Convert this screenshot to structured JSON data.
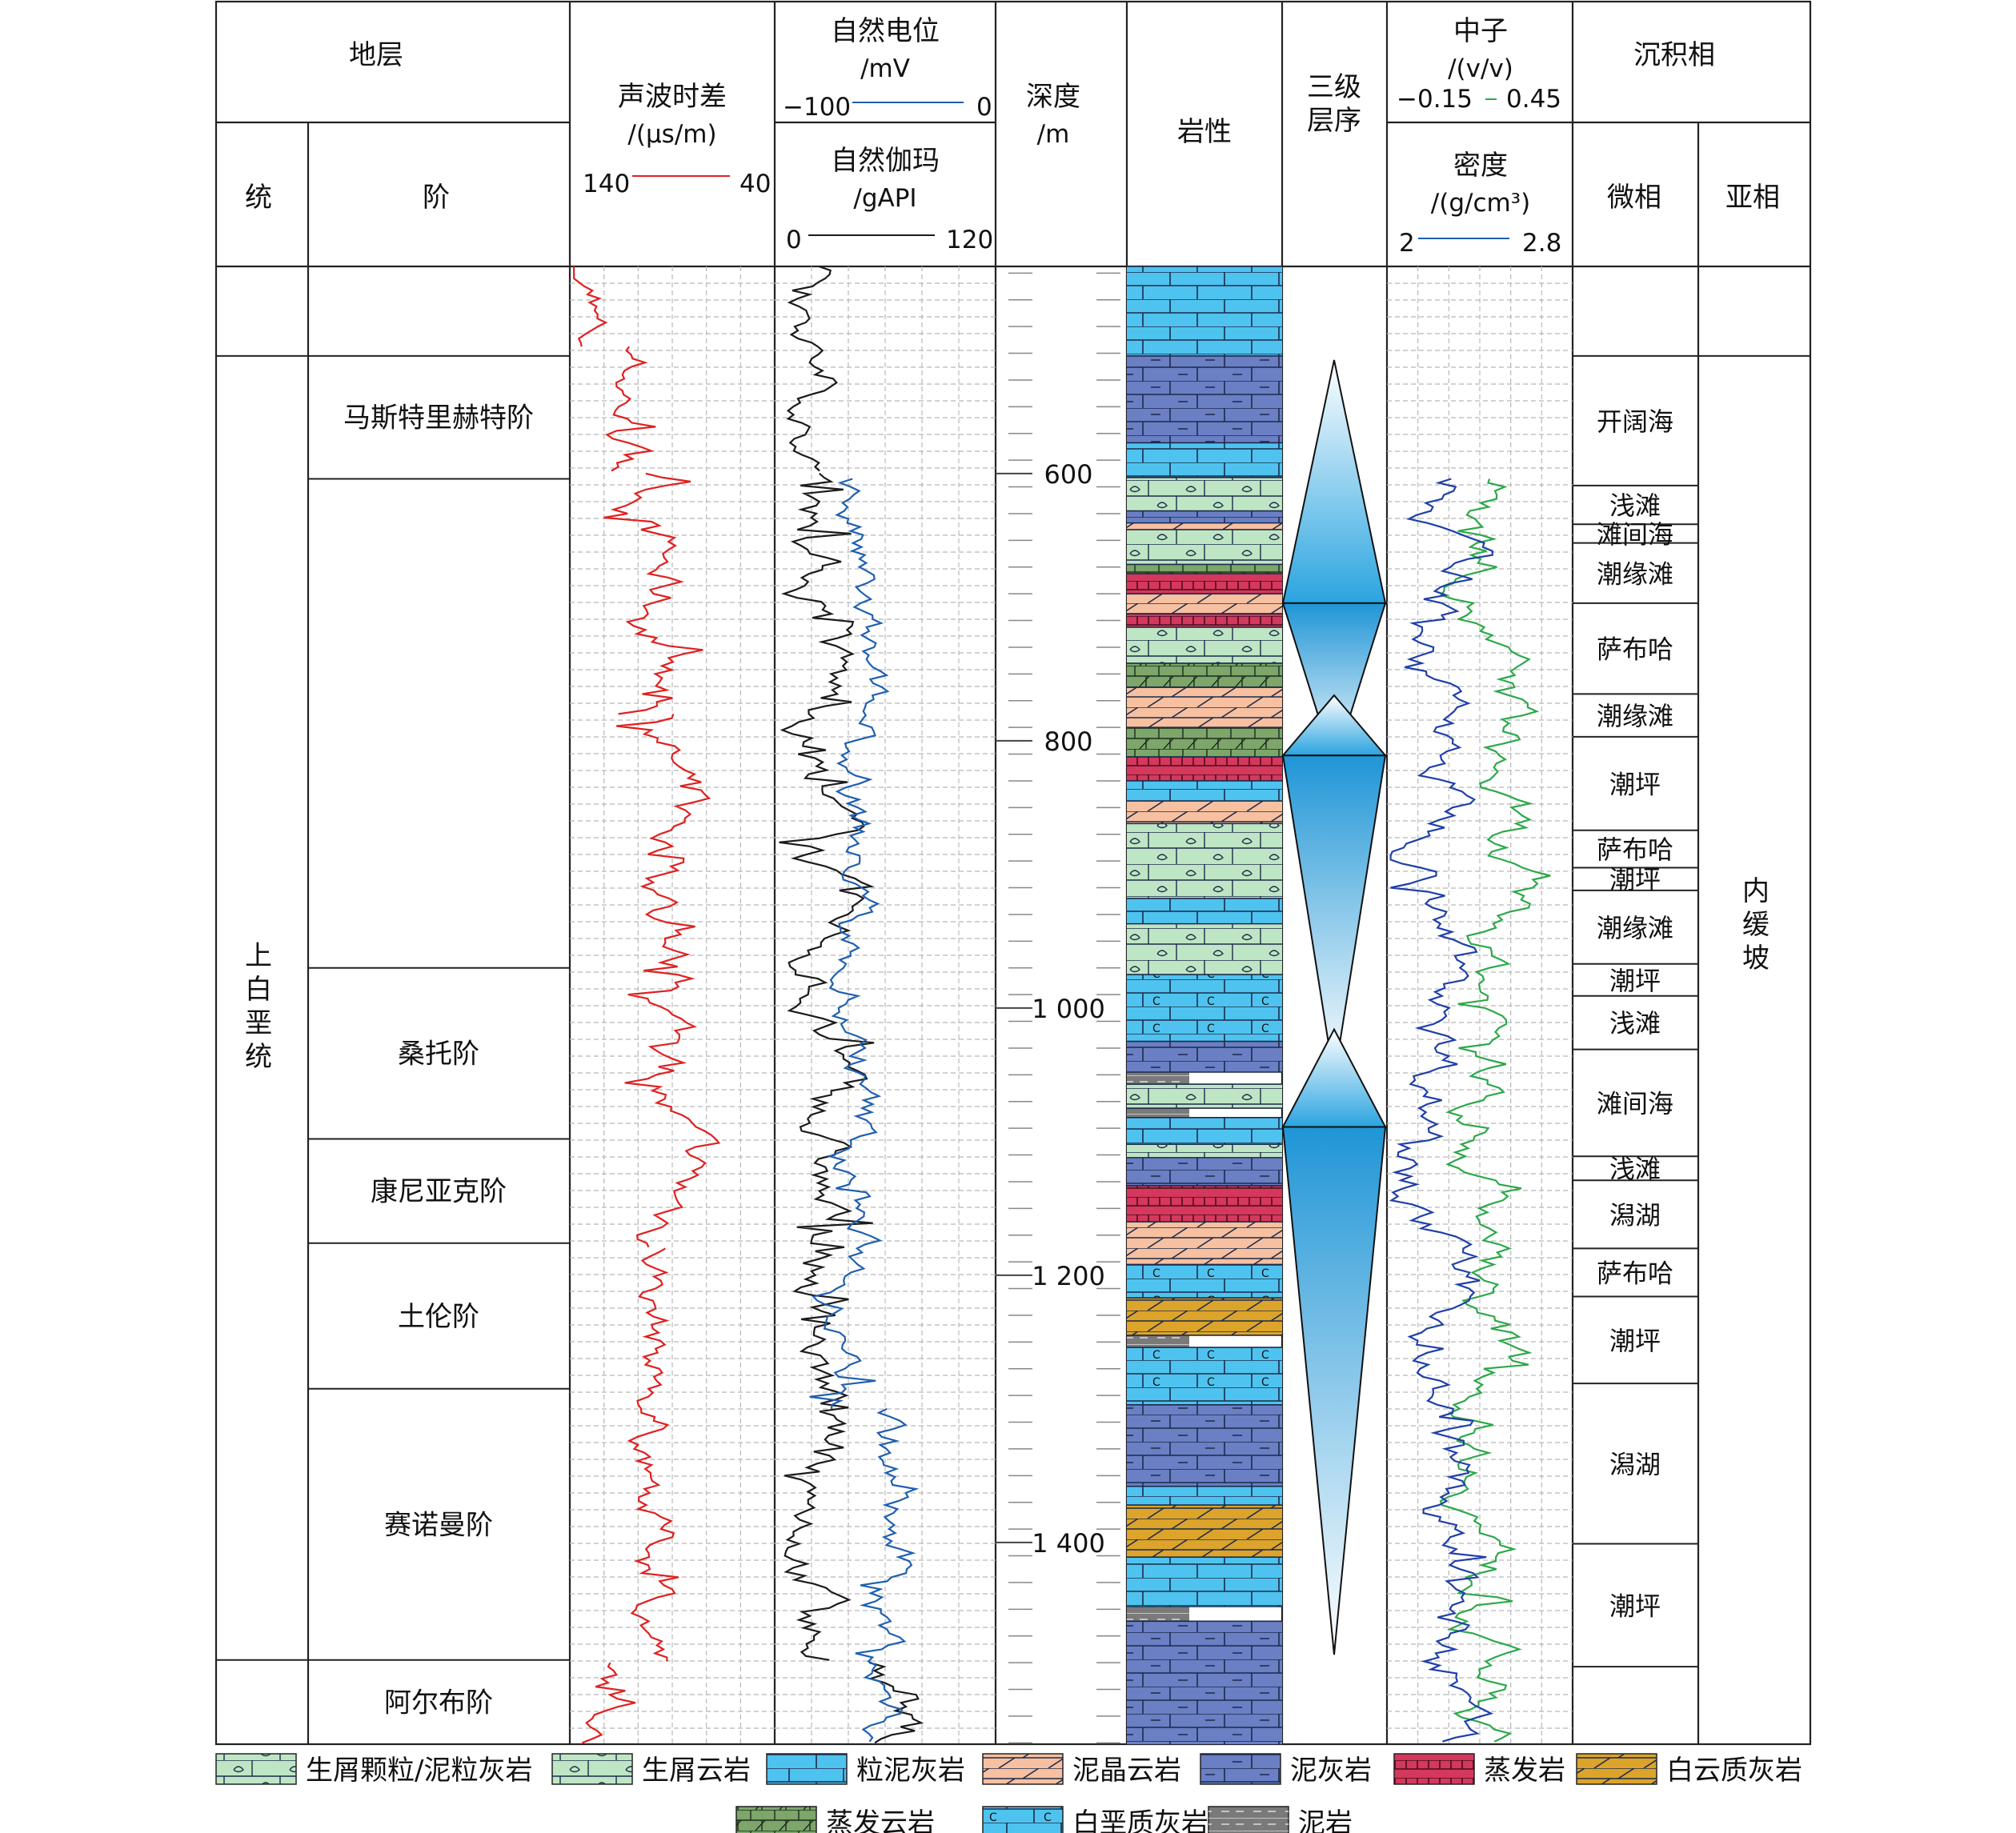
{
  "header": {
    "stratum": "地层",
    "series": "统",
    "stage": "阶",
    "sonic_title": "声波时差",
    "sonic_unit": "/(μs/m)",
    "sonic_left": "140",
    "sonic_right": "40",
    "sp_title": "自然电位",
    "sp_unit": "/mV",
    "sp_left": "−100",
    "sp_right": "0",
    "gr_title": "自然伽玛",
    "gr_unit": "/gAPI",
    "gr_left": "0",
    "gr_right": "120",
    "depth_title": "深度",
    "depth_unit": "/m",
    "lithology": "岩性",
    "sequence": "三级\n层序",
    "neutron_title": "中子",
    "neutron_unit": "/(v/v)",
    "neutron_left": "−0.15",
    "neutron_right": "0.45",
    "density_title": "密度",
    "density_unit": "/(g/cm³)",
    "density_left": "2",
    "density_right": "2.8",
    "facies": "沉积相",
    "microfacies": "微相",
    "subfacies": "亚相"
  },
  "series_name": "上白垩统",
  "stages": [
    {
      "name": "",
      "top": 445,
      "bottom": 512
    },
    {
      "name": "马斯特里赫特阶",
      "top": 512,
      "bottom": 604
    },
    {
      "name": "",
      "top": 604,
      "bottom": 970
    },
    {
      "name": "桑托阶",
      "top": 970,
      "bottom": 1098
    },
    {
      "name": "康尼亚克阶",
      "top": 1098,
      "bottom": 1176
    },
    {
      "name": "土伦阶",
      "top": 1176,
      "bottom": 1285
    },
    {
      "name": "赛诺曼阶",
      "top": 1285,
      "bottom": 1488
    },
    {
      "name": "阿尔布阶",
      "top": 1488,
      "bottom": 1551
    }
  ],
  "depth_ticks": [
    "600",
    "800",
    "1 000",
    "1 200",
    "1 400"
  ],
  "depth_tick_values": [
    600,
    800,
    1000,
    1200,
    1400
  ],
  "depth_range": [
    445,
    1551
  ],
  "lithology_layers": [
    {
      "top": 445,
      "bottom": 512,
      "rock": "粒泥灰岩"
    },
    {
      "top": 512,
      "bottom": 577,
      "rock": "泥灰岩"
    },
    {
      "top": 577,
      "bottom": 603,
      "rock": "粒泥灰岩"
    },
    {
      "top": 603,
      "bottom": 628,
      "rock": "生屑颗粒/泥粒灰岩"
    },
    {
      "top": 628,
      "bottom": 637,
      "rock": "泥灰岩"
    },
    {
      "top": 637,
      "bottom": 642,
      "rock": "泥晶云岩"
    },
    {
      "top": 642,
      "bottom": 668,
      "rock": "生屑颗粒/泥粒灰岩"
    },
    {
      "top": 668,
      "bottom": 675,
      "rock": "蒸发云岩"
    },
    {
      "top": 675,
      "bottom": 690,
      "rock": "蒸发岩"
    },
    {
      "top": 690,
      "bottom": 705,
      "rock": "泥晶云岩"
    },
    {
      "top": 705,
      "bottom": 715,
      "rock": "蒸发岩"
    },
    {
      "top": 715,
      "bottom": 742,
      "rock": "生屑云岩"
    },
    {
      "top": 742,
      "bottom": 760,
      "rock": "蒸发云岩"
    },
    {
      "top": 760,
      "bottom": 790,
      "rock": "泥晶云岩"
    },
    {
      "top": 790,
      "bottom": 812,
      "rock": "蒸发云岩"
    },
    {
      "top": 812,
      "bottom": 830,
      "rock": "蒸发岩"
    },
    {
      "top": 830,
      "bottom": 845,
      "rock": "粒泥灰岩"
    },
    {
      "top": 845,
      "bottom": 862,
      "rock": "泥晶云岩"
    },
    {
      "top": 862,
      "bottom": 918,
      "rock": "生屑云岩"
    },
    {
      "top": 918,
      "bottom": 937,
      "rock": "粒泥灰岩"
    },
    {
      "top": 937,
      "bottom": 975,
      "rock": "生屑颗粒/泥粒灰岩"
    },
    {
      "top": 975,
      "bottom": 1025,
      "rock": "白垩质灰岩"
    },
    {
      "top": 1025,
      "bottom": 1048,
      "rock": "泥灰岩"
    },
    {
      "top": 1048,
      "bottom": 1057,
      "rock": "泥岩"
    },
    {
      "top": 1057,
      "bottom": 1075,
      "rock": "生屑颗粒/泥粒灰岩"
    },
    {
      "top": 1075,
      "bottom": 1082,
      "rock": "泥岩"
    },
    {
      "top": 1082,
      "bottom": 1102,
      "rock": "粒泥灰岩"
    },
    {
      "top": 1102,
      "bottom": 1112,
      "rock": "生屑云岩"
    },
    {
      "top": 1112,
      "bottom": 1133,
      "rock": "泥灰岩"
    },
    {
      "top": 1133,
      "bottom": 1160,
      "rock": "蒸发岩"
    },
    {
      "top": 1160,
      "bottom": 1192,
      "rock": "泥晶云岩"
    },
    {
      "top": 1192,
      "bottom": 1217,
      "rock": "白垩质灰岩"
    },
    {
      "top": 1217,
      "bottom": 1245,
      "rock": "白云质灰岩"
    },
    {
      "top": 1245,
      "bottom": 1254,
      "rock": "泥岩"
    },
    {
      "top": 1254,
      "bottom": 1297,
      "rock": "白垩质灰岩"
    },
    {
      "top": 1297,
      "bottom": 1358,
      "rock": "泥灰岩"
    },
    {
      "top": 1358,
      "bottom": 1372,
      "rock": "粒泥灰岩"
    },
    {
      "top": 1372,
      "bottom": 1411,
      "rock": "白云质灰岩"
    },
    {
      "top": 1411,
      "bottom": 1448,
      "rock": "粒泥灰岩"
    },
    {
      "top": 1448,
      "bottom": 1459,
      "rock": "泥岩"
    },
    {
      "top": 1459,
      "bottom": 1551,
      "rock": "泥灰岩"
    }
  ],
  "sequences": [
    {
      "top": 515,
      "mid": 697,
      "bottom": 819
    },
    {
      "top": 766,
      "mid": 811,
      "bottom": 1053
    },
    {
      "top": 1016,
      "mid": 1089,
      "bottom": 1484
    }
  ],
  "microfacies": [
    {
      "name": "",
      "top": 445,
      "bottom": 512
    },
    {
      "name": "开阔海",
      "top": 512,
      "bottom": 609
    },
    {
      "name": "浅滩",
      "top": 609,
      "bottom": 638
    },
    {
      "name": "滩间海",
      "top": 638,
      "bottom": 652
    },
    {
      "name": "潮缘滩",
      "top": 652,
      "bottom": 697
    },
    {
      "name": "萨布哈",
      "top": 697,
      "bottom": 765
    },
    {
      "name": "潮缘滩",
      "top": 765,
      "bottom": 797
    },
    {
      "name": "潮坪",
      "top": 797,
      "bottom": 867
    },
    {
      "name": "萨布哈",
      "top": 867,
      "bottom": 895
    },
    {
      "name": "潮坪",
      "top": 895,
      "bottom": 912
    },
    {
      "name": "潮缘滩",
      "top": 912,
      "bottom": 967
    },
    {
      "name": "潮坪",
      "top": 967,
      "bottom": 991
    },
    {
      "name": "浅滩",
      "top": 991,
      "bottom": 1031
    },
    {
      "name": "滩间海",
      "top": 1031,
      "bottom": 1111
    },
    {
      "name": "浅滩",
      "top": 1111,
      "bottom": 1129
    },
    {
      "name": "潟湖",
      "top": 1129,
      "bottom": 1180
    },
    {
      "name": "萨布哈",
      "top": 1180,
      "bottom": 1216
    },
    {
      "name": "潮坪",
      "top": 1216,
      "bottom": 1281
    },
    {
      "name": "潟湖",
      "top": 1281,
      "bottom": 1401
    },
    {
      "name": "潮坪",
      "top": 1401,
      "bottom": 1493
    },
    {
      "name": "",
      "top": 1493,
      "bottom": 1551
    }
  ],
  "subfacies": [
    {
      "name": "",
      "top": 445,
      "bottom": 512
    },
    {
      "name": "内缓坡",
      "top": 512,
      "bottom": 1551
    }
  ],
  "legend": [
    {
      "name": "生屑颗粒/泥粒灰岩",
      "key": "生屑颗粒/泥粒灰岩"
    },
    {
      "name": "生屑云岩",
      "key": "生屑云岩"
    },
    {
      "name": "粒泥灰岩",
      "key": "粒泥灰岩"
    },
    {
      "name": "泥晶云岩",
      "key": "泥晶云岩"
    },
    {
      "name": "泥灰岩",
      "key": "泥灰岩"
    },
    {
      "name": "蒸发岩",
      "key": "蒸发岩"
    },
    {
      "name": "白云质灰岩",
      "key": "白云质灰岩"
    },
    {
      "name": "蒸发云岩",
      "key": "蒸发云岩"
    },
    {
      "name": "白垩质灰岩",
      "key": "白垩质灰岩"
    },
    {
      "name": "泥岩",
      "key": "泥岩"
    }
  ],
  "rock_colors": {
    "生屑颗粒/泥粒灰岩": "#bfe6c4",
    "生屑云岩": "#bfe6c4",
    "粒泥灰岩": "#4fc3ef",
    "泥晶云岩": "#f7c0a0",
    "泥灰岩": "#6a7fc4",
    "蒸发岩": "#d4385c",
    "白云质灰岩": "#dca42a",
    "蒸发云岩": "#7ca66a",
    "白垩质灰岩": "#4fc3ef",
    "泥岩": "#7a7a7a"
  },
  "colors": {
    "sonic": "#e02020",
    "sp": "#1a1a1a",
    "gr": "#1f5fb0",
    "neutron": "#2ca84a",
    "density": "#1f3fa8",
    "sequence_fill": "#2aa4e0"
  }
}
